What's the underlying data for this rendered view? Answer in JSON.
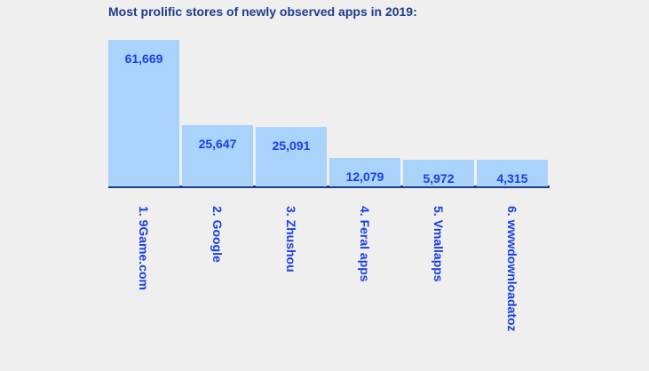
{
  "chart_data": {
    "type": "bar",
    "title": "Most prolific stores of newly observed apps in 2019:",
    "categories": [
      "1. 9Game.com",
      "2. Google",
      "3. Zhushou",
      "4. Feral apps",
      "5. Vmallapps",
      "6. wwwdownloadatoz"
    ],
    "values": [
      61669,
      25647,
      25091,
      12079,
      5972,
      4315
    ],
    "value_labels": [
      "61,669",
      "25,647",
      "25,091",
      "12,079",
      "5,972",
      "4,315"
    ],
    "xlabel": "",
    "ylabel": "",
    "grid": false,
    "colors": {
      "bar": "#a9d3fb",
      "baseline": "#1e3c8c",
      "label": "#1a3ee6",
      "title": "#1e3c8c"
    }
  }
}
